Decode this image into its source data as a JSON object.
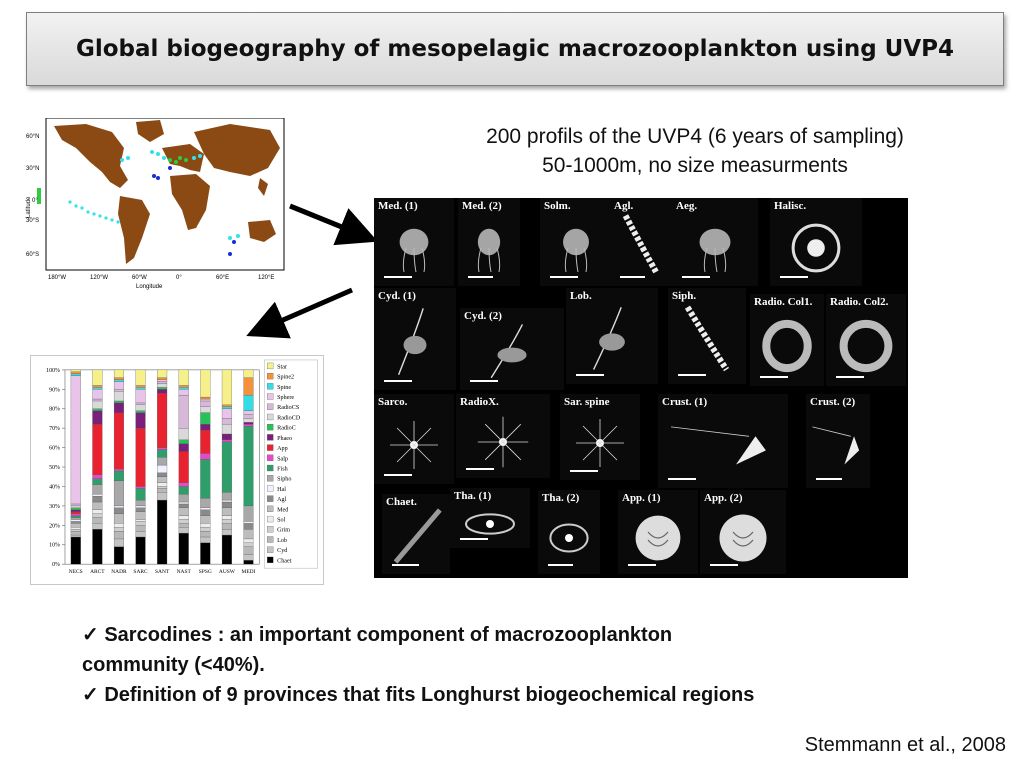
{
  "title": "Global biogeography of mesopelagic macrozooplankton using UVP4",
  "intro": {
    "line1": "200 profils of the UVP4 (6 years of sampling)",
    "line2": "50-1000m, no size measurments"
  },
  "map": {
    "ylabel": "Latitude",
    "xlabel": "Longitude",
    "lat_ticks": [
      "60°N",
      "30°N",
      "0°",
      "30°S",
      "60°S"
    ],
    "lon_ticks": [
      "180°W",
      "120°W",
      "60°W",
      "0°",
      "60°E",
      "120°E"
    ],
    "colors": {
      "land": "#8b4a14",
      "ocean": "#ffffff",
      "track_cyan": "#33e0ee",
      "track_green": "#2ecc40",
      "track_blue": "#1a2fd0"
    }
  },
  "gallery": {
    "tiles": [
      {
        "label": "Med. (1)",
        "icon": "medusa-icon"
      },
      {
        "label": "Med. (2)",
        "icon": "medusa-icon"
      },
      {
        "label": "Solm.",
        "icon": "medusa-icon"
      },
      {
        "label": "Agl.",
        "icon": "siphonophore-icon"
      },
      {
        "label": "Aeg.",
        "icon": "medusa-icon"
      },
      {
        "label": "Halisc.",
        "icon": "radiolarian-icon"
      },
      {
        "label": "Cyd. (1)",
        "icon": "ctenophore-icon"
      },
      {
        "label": "Cyd. (2)",
        "icon": "ctenophore-icon"
      },
      {
        "label": "Lob.",
        "icon": "ctenophore-icon"
      },
      {
        "label": "Siph.",
        "icon": "siphonophore-icon"
      },
      {
        "label": "Radio. Col1.",
        "icon": "colony-icon"
      },
      {
        "label": "Radio. Col2.",
        "icon": "colony-icon"
      },
      {
        "label": "Sarco.",
        "icon": "sarcodine-icon"
      },
      {
        "label": "RadioX.",
        "icon": "sarcodine-icon"
      },
      {
        "label": "Sar. spine",
        "icon": "sarcodine-icon"
      },
      {
        "label": "Crust. (1)",
        "icon": "crustacean-icon"
      },
      {
        "label": "Crust. (2)",
        "icon": "crustacean-icon"
      },
      {
        "label": "Chaet.",
        "icon": "chaetognath-icon"
      },
      {
        "label": "Tha. (1)",
        "icon": "salp-icon"
      },
      {
        "label": "Tha. (2)",
        "icon": "salp-icon"
      },
      {
        "label": "App. (1)",
        "icon": "appendicularian-icon"
      },
      {
        "label": "App. (2)",
        "icon": "appendicularian-icon"
      }
    ]
  },
  "chart_data": {
    "type": "bar",
    "stacked": true,
    "categories": [
      "NECS",
      "ARCT",
      "NADR",
      "SARC",
      "SANT",
      "NAST",
      "SPSG",
      "AUSW",
      "MEDI"
    ],
    "yticks": [
      "0%",
      "10%",
      "20%",
      "30%",
      "40%",
      "50%",
      "60%",
      "70%",
      "80%",
      "90%",
      "100%"
    ],
    "ylim": [
      0,
      100
    ],
    "legend_position": "right",
    "series": [
      {
        "name": "Chaet",
        "color": "#000000",
        "values": [
          14,
          18,
          9,
          14,
          33,
          16,
          11,
          15,
          2
        ]
      },
      {
        "name": "Cyd",
        "color": "#c4c4c4",
        "values": [
          1,
          3,
          4,
          3,
          4,
          3,
          3,
          3,
          3
        ]
      },
      {
        "name": "Lob",
        "color": "#b8b8b8",
        "values": [
          2,
          3,
          4,
          3,
          2,
          2,
          3,
          3,
          4
        ]
      },
      {
        "name": "Grim",
        "color": "#cfcfcf",
        "values": [
          1,
          2,
          2,
          2,
          1,
          2,
          2,
          2,
          2
        ]
      },
      {
        "name": "Sol",
        "color": "#ececec",
        "values": [
          1,
          2,
          2,
          1,
          2,
          2,
          2,
          2,
          2
        ]
      },
      {
        "name": "Med",
        "color": "#bdbdbd",
        "values": [
          2,
          4,
          5,
          4,
          3,
          4,
          4,
          4,
          5
        ]
      },
      {
        "name": "Agl",
        "color": "#8a8a8a",
        "values": [
          1,
          3,
          3,
          2,
          2,
          2,
          3,
          3,
          3
        ]
      },
      {
        "name": "Hal",
        "color": "#f0f0ff",
        "values": [
          1,
          1,
          1,
          1,
          4,
          1,
          1,
          1,
          1
        ]
      },
      {
        "name": "Sipho",
        "color": "#a8a8a8",
        "values": [
          1,
          5,
          13,
          3,
          4,
          4,
          5,
          4,
          8
        ]
      },
      {
        "name": "Fish",
        "color": "#2e9e6b",
        "values": [
          1,
          3,
          5,
          6,
          4,
          4,
          20,
          26,
          41
        ]
      },
      {
        "name": "Salp",
        "color": "#e64ac8",
        "values": [
          1,
          2,
          1,
          1,
          1,
          2,
          3,
          1,
          1
        ]
      },
      {
        "name": "App",
        "color": "#e8232f",
        "values": [
          1,
          26,
          29,
          30,
          28,
          16,
          12,
          0,
          0
        ]
      },
      {
        "name": "Phaeo",
        "color": "#7a1f7a",
        "values": [
          1,
          7,
          5,
          8,
          2,
          4,
          3,
          3,
          1
        ]
      },
      {
        "name": "RadioC",
        "color": "#25c25a",
        "values": [
          1,
          1,
          1,
          1,
          1,
          2,
          6,
          0,
          0
        ]
      },
      {
        "name": "RadioCD",
        "color": "#d9d9d9",
        "values": [
          1,
          4,
          5,
          3,
          2,
          6,
          3,
          5,
          2
        ]
      },
      {
        "name": "RadioCS",
        "color": "#d8b8d8",
        "values": [
          1,
          1,
          1,
          1,
          1,
          17,
          3,
          3,
          2
        ]
      },
      {
        "name": "Sphere",
        "color": "#e8c4e8",
        "values": [
          66,
          5,
          4,
          7,
          1,
          3,
          1,
          5,
          2
        ]
      },
      {
        "name": "Spine",
        "color": "#33dde6",
        "values": [
          1,
          1,
          1,
          1,
          0,
          1,
          0,
          1,
          8
        ]
      },
      {
        "name": "Spine2",
        "color": "#f5913a",
        "values": [
          1,
          1,
          1,
          1,
          1,
          1,
          1,
          1,
          9
        ]
      },
      {
        "name": "Star",
        "color": "#f5f08a",
        "values": [
          1,
          8,
          4,
          8,
          4,
          8,
          14,
          18,
          4
        ]
      }
    ]
  },
  "bullets": {
    "check": "✓",
    "line1": "Sarcodines : an important component of macrozooplankton",
    "line1b": "community (<40%).",
    "line2": "Definition of 9 provinces  that fits Longhurst biogeochemical regions"
  },
  "citation": "Stemmann et al., 2008"
}
